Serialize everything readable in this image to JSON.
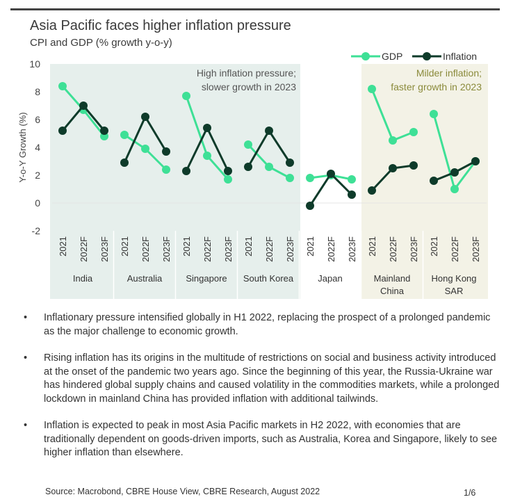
{
  "header": {
    "title": "Asia Pacific faces higher inflation pressure",
    "subtitle": "CPI and GDP (% growth y-o-y)"
  },
  "chart_data": {
    "type": "line",
    "ylabel": "Y-o-Y Growth (%)",
    "ylim": [
      -2,
      10
    ],
    "yticks": [
      10,
      8,
      6,
      4,
      2,
      0,
      -2
    ],
    "groups": [
      "India",
      "Australia",
      "Singapore",
      "South Korea",
      "Japan",
      "Mainland China",
      "Hong Kong SAR"
    ],
    "group_label_lines": [
      [
        "India"
      ],
      [
        "Australia"
      ],
      [
        "Singapore"
      ],
      [
        "South Korea"
      ],
      [
        "Japan"
      ],
      [
        "Mainland",
        "China"
      ],
      [
        "Hong Kong",
        "SAR"
      ]
    ],
    "periods": [
      "2021",
      "2022F",
      "2023F"
    ],
    "series": [
      {
        "name": "GDP",
        "color": "#3ee096",
        "values": [
          [
            8.4,
            6.7,
            4.8
          ],
          [
            4.9,
            3.9,
            2.4
          ],
          [
            7.7,
            3.4,
            1.7
          ],
          [
            4.2,
            2.6,
            1.8
          ],
          [
            1.8,
            2.0,
            1.7
          ],
          [
            8.2,
            4.5,
            5.1
          ],
          [
            6.4,
            1.0,
            3.0
          ]
        ]
      },
      {
        "name": "Inflation",
        "color": "#0e3b2a",
        "values": [
          [
            5.2,
            7.0,
            5.2
          ],
          [
            2.9,
            6.2,
            3.7
          ],
          [
            2.3,
            5.4,
            2.3
          ],
          [
            2.6,
            5.2,
            2.9
          ],
          [
            -0.2,
            2.1,
            0.6
          ],
          [
            0.9,
            2.5,
            2.7
          ],
          [
            1.6,
            2.2,
            3.0
          ]
        ]
      }
    ],
    "annotations": [
      {
        "lines": [
          "High inflation pressure;",
          "slower growth in 2023"
        ],
        "color": "#555555",
        "shade": "#e6efec"
      },
      {
        "lines": [
          "Milder inflation;",
          "faster growth in 2023"
        ],
        "color": "#8a8a3a",
        "shade": "#f3f2e6"
      }
    ],
    "legend": "top-right",
    "grid": false
  },
  "bullets": [
    "Inflationary pressure intensified globally in H1 2022, replacing the prospect of a prolonged pandemic as the major challenge to economic growth.",
    "Rising inflation has its origins in the multitude of restrictions on social and business activity introduced at the onset of the pandemic two years ago. Since the beginning of this year, the Russia-Ukraine war has hindered global supply chains and caused volatility in the commodities markets, while a prolonged lockdown in mainland China has provided inflation with additional tailwinds.",
    "Inflation is expected to peak in most Asia Pacific markets in H2 2022, with economies that are traditionally dependent on goods-driven imports, such as Australia, Korea and Singapore, likely to see higher inflation than elsewhere."
  ],
  "footer": {
    "source": "Source: Macrobond, CBRE House View, CBRE Research, August 2022",
    "page": "1/6"
  }
}
